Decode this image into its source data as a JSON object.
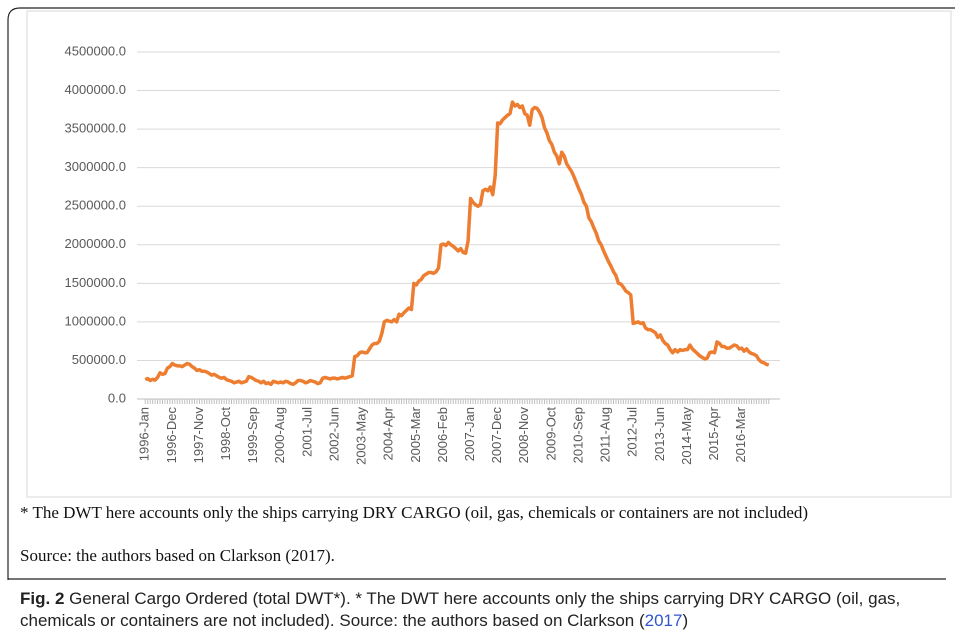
{
  "chart_data": {
    "type": "line",
    "color": "#ed7d31",
    "categories": [
      "1996-Jan",
      null,
      null,
      null,
      null,
      null,
      null,
      null,
      null,
      null,
      null,
      "1996-Dec",
      null,
      null,
      null,
      null,
      null,
      null,
      null,
      null,
      null,
      null,
      "1997-Nov",
      null,
      null,
      null,
      null,
      null,
      null,
      null,
      null,
      null,
      null,
      "1998-Oct",
      null,
      null,
      null,
      null,
      null,
      null,
      null,
      null,
      null,
      null,
      "1999-Sep",
      null,
      null,
      null,
      null,
      null,
      null,
      null,
      null,
      null,
      null,
      "2000-Aug",
      null,
      null,
      null,
      null,
      null,
      null,
      null,
      null,
      null,
      null,
      "2001-Jul",
      null,
      null,
      null,
      null,
      null,
      null,
      null,
      null,
      null,
      null,
      "2002-Jun",
      null,
      null,
      null,
      null,
      null,
      null,
      null,
      null,
      null,
      null,
      "2003-May",
      null,
      null,
      null,
      null,
      null,
      null,
      null,
      null,
      null,
      null,
      "2004-Apr",
      null,
      null,
      null,
      null,
      null,
      null,
      null,
      null,
      null,
      null,
      "2005-Mar",
      null,
      null,
      null,
      null,
      null,
      null,
      null,
      null,
      null,
      null,
      "2006-Feb",
      null,
      null,
      null,
      null,
      null,
      null,
      null,
      null,
      null,
      null,
      "2007-Jan",
      null,
      null,
      null,
      null,
      null,
      null,
      null,
      null,
      null,
      null,
      "2007-Dec",
      null,
      null,
      null,
      null,
      null,
      null,
      null,
      null,
      null,
      null,
      "2008-Nov",
      null,
      null,
      null,
      null,
      null,
      null,
      null,
      null,
      null,
      null,
      "2009-Oct",
      null,
      null,
      null,
      null,
      null,
      null,
      null,
      null,
      null,
      null,
      "2010-Sep",
      null,
      null,
      null,
      null,
      null,
      null,
      null,
      null,
      null,
      null,
      "2011-Aug",
      null,
      null,
      null,
      null,
      null,
      null,
      null,
      null,
      null,
      null,
      "2012-Jul",
      null,
      null,
      null,
      null,
      null,
      null,
      null,
      null,
      null,
      null,
      "2013-Jun",
      null,
      null,
      null,
      null,
      null,
      null,
      null,
      null,
      null,
      null,
      "2014-May",
      null,
      null,
      null,
      null,
      null,
      null,
      null,
      null,
      null,
      null,
      "2015-Apr",
      null,
      null,
      null,
      null,
      null,
      null,
      null,
      null,
      null,
      null,
      "2016-Mar",
      null,
      null,
      null,
      null,
      null,
      null,
      null,
      null,
      null,
      null,
      null
    ],
    "values": [
      250000,
      265000,
      240000,
      255000,
      245000,
      280000,
      340000,
      320000,
      330000,
      400000,
      420000,
      460000,
      440000,
      430000,
      430000,
      420000,
      440000,
      460000,
      450000,
      420000,
      400000,
      370000,
      380000,
      360000,
      360000,
      350000,
      330000,
      310000,
      320000,
      300000,
      280000,
      270000,
      280000,
      250000,
      240000,
      230000,
      210000,
      220000,
      230000,
      210000,
      220000,
      230000,
      290000,
      280000,
      260000,
      240000,
      230000,
      210000,
      230000,
      200000,
      210000,
      190000,
      230000,
      220000,
      210000,
      220000,
      210000,
      230000,
      220000,
      200000,
      190000,
      210000,
      240000,
      240000,
      230000,
      210000,
      220000,
      240000,
      230000,
      220000,
      200000,
      210000,
      270000,
      280000,
      270000,
      260000,
      270000,
      270000,
      260000,
      270000,
      280000,
      270000,
      280000,
      290000,
      300000,
      550000,
      560000,
      600000,
      610000,
      600000,
      600000,
      650000,
      700000,
      720000,
      720000,
      750000,
      850000,
      1000000,
      1020000,
      1010000,
      1000000,
      1030000,
      1000000,
      1100000,
      1080000,
      1120000,
      1150000,
      1180000,
      1160000,
      1500000,
      1480000,
      1530000,
      1550000,
      1600000,
      1620000,
      1640000,
      1640000,
      1630000,
      1650000,
      1700000,
      2000000,
      2010000,
      1990000,
      2030000,
      2000000,
      1980000,
      1950000,
      1920000,
      1950000,
      1900000,
      1890000,
      2050000,
      2600000,
      2550000,
      2520000,
      2500000,
      2520000,
      2700000,
      2720000,
      2700000,
      2750000,
      2650000,
      2900000,
      3580000,
      3570000,
      3620000,
      3650000,
      3680000,
      3700000,
      3850000,
      3800000,
      3820000,
      3780000,
      3800000,
      3700000,
      3680000,
      3550000,
      3750000,
      3780000,
      3770000,
      3720000,
      3650000,
      3520000,
      3450000,
      3350000,
      3300000,
      3200000,
      3150000,
      3050000,
      3200000,
      3150000,
      3050000,
      3000000,
      2950000,
      2880000,
      2800000,
      2720000,
      2650000,
      2550000,
      2500000,
      2350000,
      2300000,
      2220000,
      2150000,
      2050000,
      2000000,
      1920000,
      1850000,
      1780000,
      1720000,
      1650000,
      1600000,
      1500000,
      1490000,
      1450000,
      1400000,
      1380000,
      1350000,
      980000,
      990000,
      1000000,
      980000,
      990000,
      920000,
      900000,
      900000,
      880000,
      860000,
      800000,
      830000,
      760000,
      720000,
      700000,
      640000,
      600000,
      640000,
      610000,
      640000,
      630000,
      640000,
      640000,
      700000,
      650000,
      620000,
      590000,
      560000,
      540000,
      520000,
      530000,
      600000,
      610000,
      600000,
      740000,
      720000,
      680000,
      680000,
      660000,
      660000,
      680000,
      700000,
      690000,
      650000,
      660000,
      620000,
      650000,
      610000,
      590000,
      580000,
      560000,
      510000,
      480000,
      470000,
      450000,
      440000
    ],
    "ylim": [
      0,
      4500000
    ],
    "yticks": [
      {
        "value": 0,
        "label": "0.0"
      },
      {
        "value": 500000,
        "label": "500000.0"
      },
      {
        "value": 1000000,
        "label": "1000000.0"
      },
      {
        "value": 1500000,
        "label": "1500000.0"
      },
      {
        "value": 2000000,
        "label": "2000000.0"
      },
      {
        "value": 2500000,
        "label": "2500000.0"
      },
      {
        "value": 3000000,
        "label": "3000000.0"
      },
      {
        "value": 3500000,
        "label": "3500000.0"
      },
      {
        "value": 4000000,
        "label": "4000000.0"
      },
      {
        "value": 4500000,
        "label": "4500000.0"
      }
    ],
    "grid": true
  },
  "note": "* The DWT here accounts only the ships carrying DRY CARGO (oil, gas, chemicals or containers are not included)",
  "source": "Source: the authors based on Clarkson (2017).",
  "caption": {
    "label": "Fig. 2",
    "text": "General Cargo Ordered (total DWT*). * The DWT here accounts only the ships carrying DRY CARGO (oil, gas, chemicals or containers are not included). Source: the authors based on Clarkson (",
    "link": "2017",
    "end": ")"
  }
}
